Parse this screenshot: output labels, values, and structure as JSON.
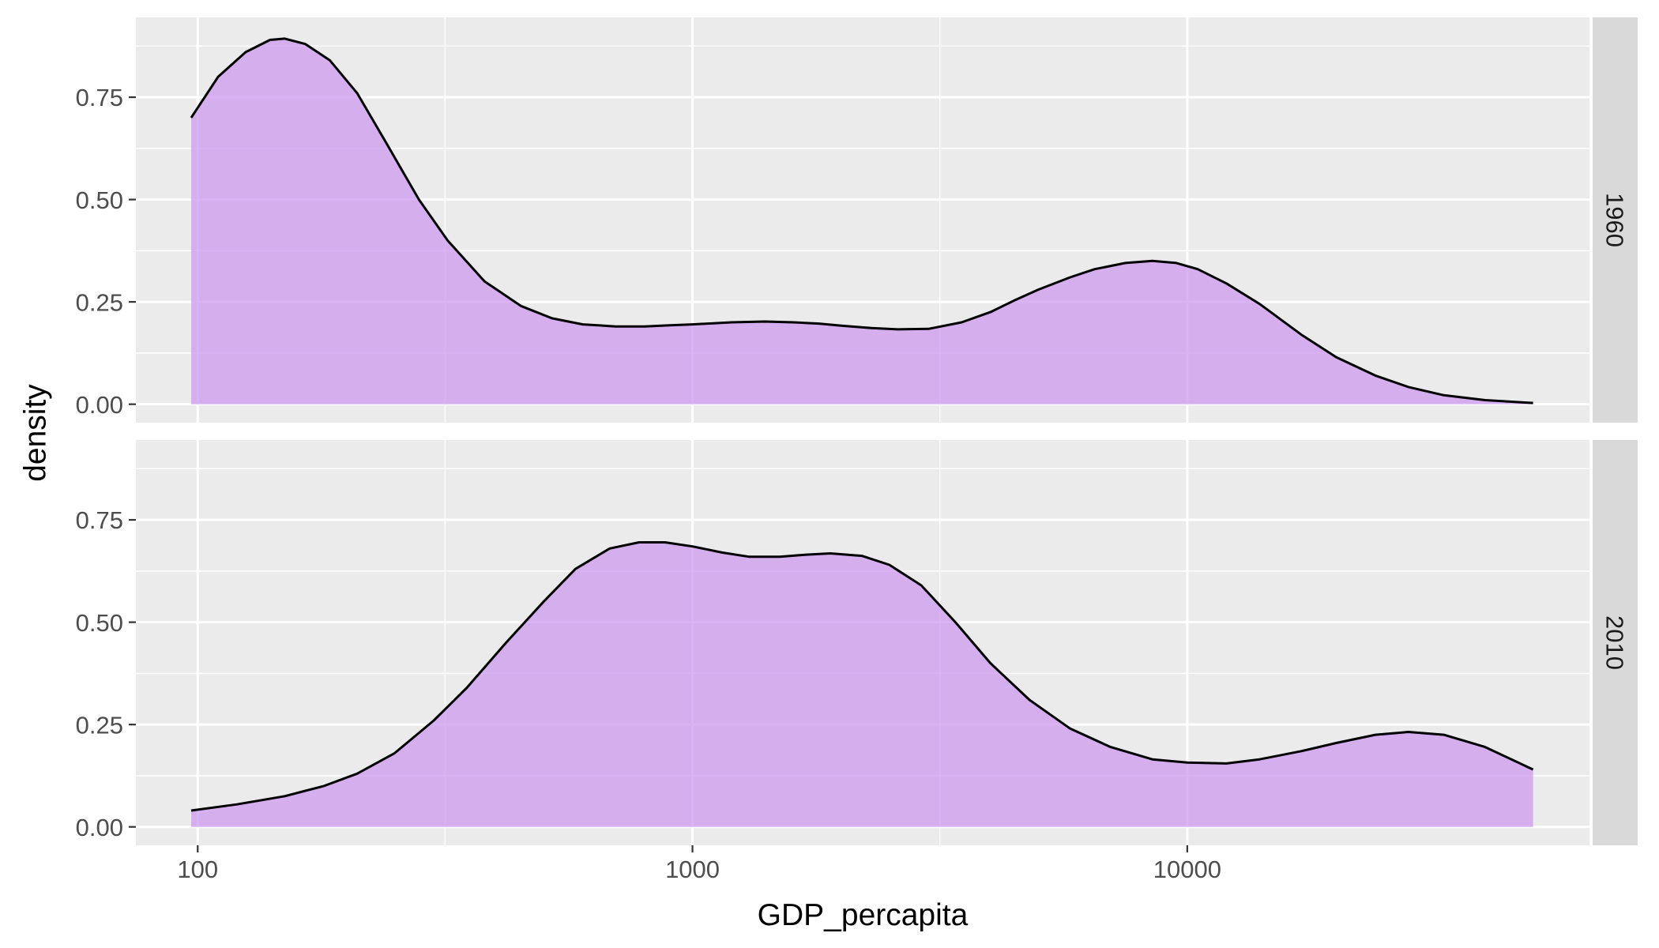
{
  "chart_data": {
    "type": "area",
    "subtype": "density",
    "title": "",
    "xlabel": "GDP_percapita",
    "ylabel": "density",
    "x_scale": "log10",
    "xlim": [
      75,
      65000
    ],
    "ylim": [
      -0.045,
      0.945
    ],
    "x_ticks": [
      100,
      1000,
      10000
    ],
    "x_tick_labels": [
      "100",
      "1000",
      "10000"
    ],
    "y_ticks": [
      0,
      0.25,
      0.5,
      0.75
    ],
    "y_tick_labels": [
      "0.00",
      "0.25",
      "0.50",
      "0.75"
    ],
    "facet": "rows",
    "fill_color": "#cc99ee",
    "fill_opacity": 0.75,
    "line_color": "#000000",
    "panel_background": "#ebebeb",
    "grid": true,
    "legend": "none",
    "panels": [
      {
        "strip_label": "1960",
        "x": [
          97,
          110,
          125,
          140,
          150,
          165,
          185,
          210,
          240,
          280,
          320,
          380,
          450,
          520,
          600,
          700,
          800,
          900,
          1000,
          1200,
          1400,
          1600,
          1800,
          2000,
          2300,
          2600,
          3000,
          3500,
          4000,
          4500,
          5000,
          5800,
          6500,
          7500,
          8500,
          9500,
          10500,
          12000,
          14000,
          17000,
          20000,
          24000,
          28000,
          33000,
          40000,
          50000
        ],
        "y": [
          0.7,
          0.8,
          0.86,
          0.89,
          0.893,
          0.88,
          0.84,
          0.76,
          0.64,
          0.5,
          0.4,
          0.3,
          0.24,
          0.21,
          0.195,
          0.19,
          0.19,
          0.193,
          0.195,
          0.2,
          0.202,
          0.2,
          0.197,
          0.192,
          0.186,
          0.183,
          0.184,
          0.2,
          0.225,
          0.255,
          0.28,
          0.31,
          0.33,
          0.345,
          0.35,
          0.345,
          0.33,
          0.295,
          0.245,
          0.17,
          0.115,
          0.07,
          0.042,
          0.022,
          0.01,
          0.003
        ]
      },
      {
        "strip_label": "2010",
        "x": [
          97,
          120,
          150,
          180,
          210,
          250,
          300,
          350,
          420,
          500,
          580,
          680,
          780,
          880,
          1000,
          1150,
          1300,
          1500,
          1700,
          1900,
          2200,
          2500,
          2900,
          3400,
          4000,
          4800,
          5800,
          7000,
          8500,
          10000,
          12000,
          14000,
          17000,
          20000,
          24000,
          28000,
          33000,
          40000,
          50000
        ],
        "y": [
          0.04,
          0.055,
          0.075,
          0.1,
          0.13,
          0.18,
          0.26,
          0.34,
          0.45,
          0.55,
          0.63,
          0.68,
          0.695,
          0.695,
          0.685,
          0.67,
          0.66,
          0.66,
          0.665,
          0.668,
          0.662,
          0.64,
          0.59,
          0.5,
          0.4,
          0.31,
          0.24,
          0.195,
          0.165,
          0.157,
          0.155,
          0.165,
          0.185,
          0.205,
          0.225,
          0.232,
          0.225,
          0.195,
          0.14
        ]
      }
    ]
  }
}
